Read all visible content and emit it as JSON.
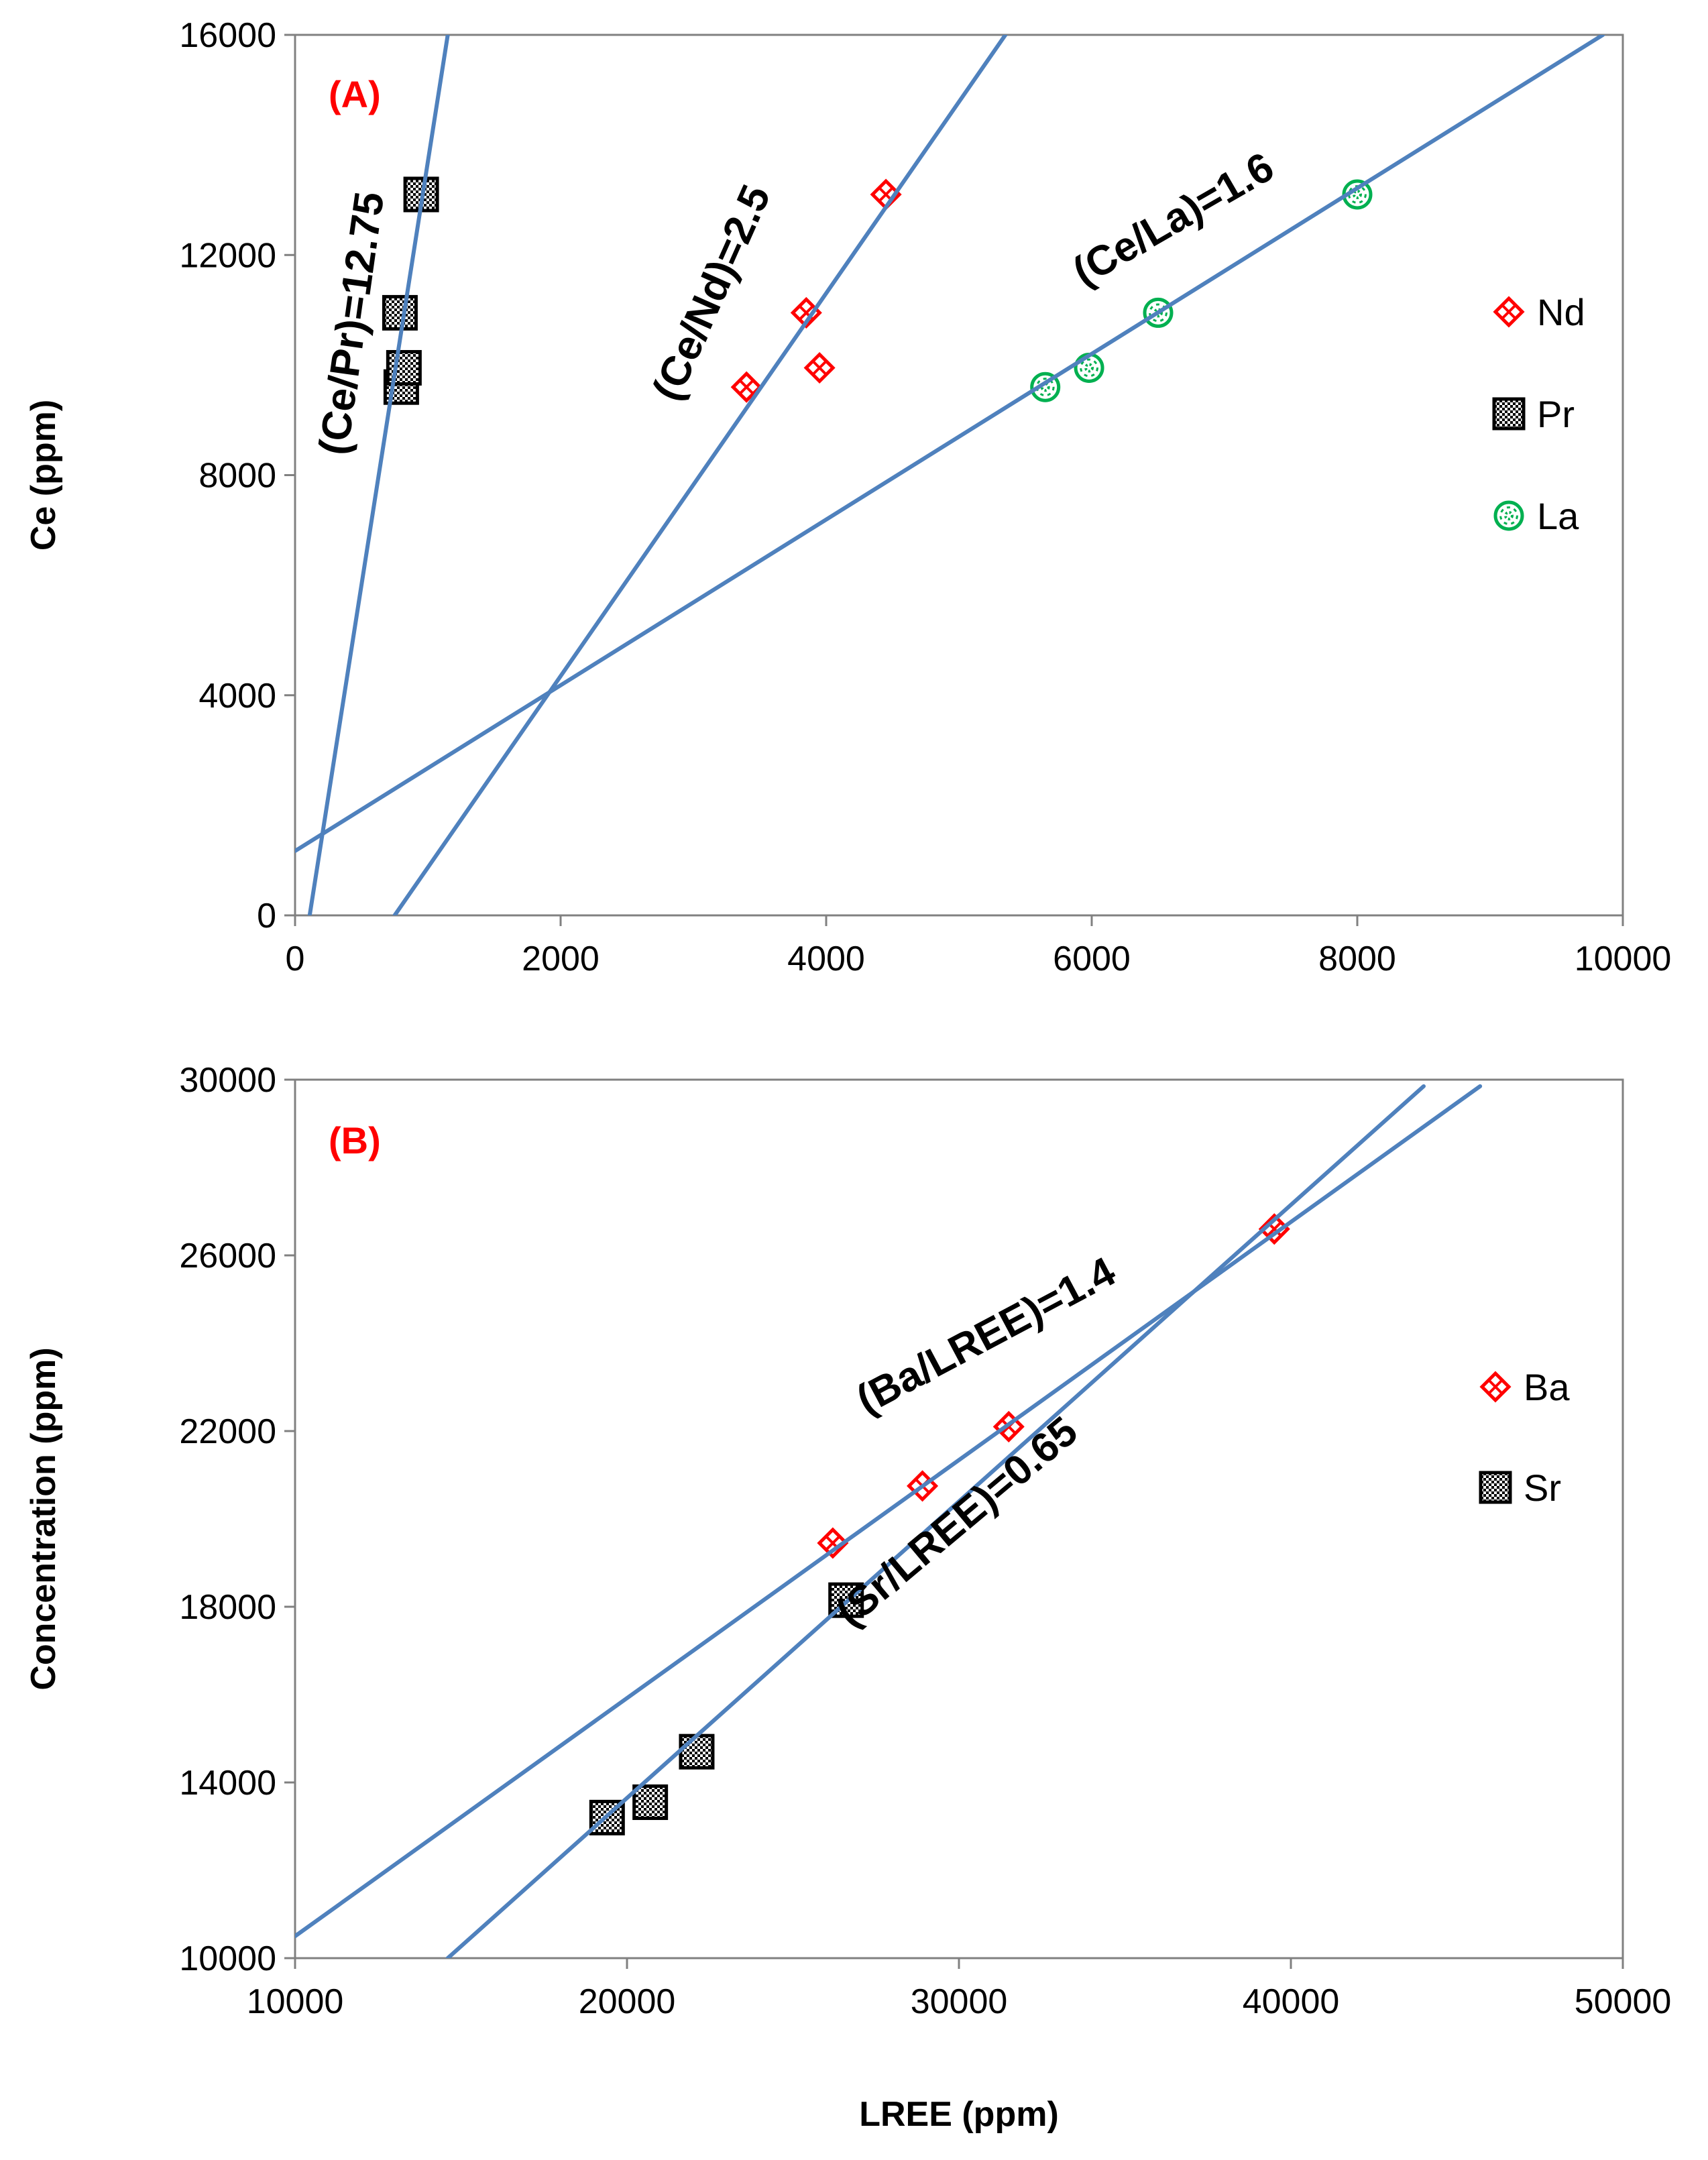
{
  "chart_data": [
    {
      "type": "scatter",
      "panel_label": "(A)",
      "title": "",
      "xlabel": "",
      "ylabel": "Ce (ppm)",
      "xlim": [
        0,
        10000
      ],
      "ylim": [
        0,
        16000
      ],
      "xticks": [
        "0",
        "2000",
        "4000",
        "6000",
        "8000",
        "10000"
      ],
      "yticks": [
        "0",
        "4000",
        "8000",
        "12000",
        "16000"
      ],
      "grid": false,
      "legend_position": "right",
      "series": [
        {
          "name": "Nd",
          "marker": "diamond",
          "color": "#ff0000",
          "points": [
            [
              3400,
              9600
            ],
            [
              3850,
              10950
            ],
            [
              3950,
              9950
            ],
            [
              4450,
              13100
            ]
          ]
        },
        {
          "name": "Pr",
          "marker": "square",
          "color": "#000000",
          "points": [
            [
              800,
              9600
            ],
            [
              820,
              9950
            ],
            [
              790,
              10950
            ],
            [
              950,
              13100
            ]
          ]
        },
        {
          "name": "La",
          "marker": "circle",
          "color": "#00b050",
          "points": [
            [
              5650,
              9600
            ],
            [
              5980,
              9950
            ],
            [
              6500,
              10950
            ],
            [
              8000,
              13100
            ]
          ]
        }
      ],
      "trend_lines": [
        {
          "label": "(Ce/Pr)=12.75",
          "points": [
            [
              110,
              0
            ],
            [
              1150,
              16000
            ]
          ]
        },
        {
          "label": "(Ce/Nd)=2.5",
          "points": [
            [
              750,
              0
            ],
            [
              5350,
              16000
            ]
          ]
        },
        {
          "label": "(Ce/La)=1.6",
          "points": [
            [
              0,
              1170
            ],
            [
              9850,
              16000
            ]
          ]
        }
      ]
    },
    {
      "type": "scatter",
      "panel_label": "(B)",
      "title": "",
      "xlabel": "LREE (ppm)",
      "ylabel": "Concentration (ppm)",
      "xlim": [
        10000,
        50000
      ],
      "ylim": [
        10000,
        30000
      ],
      "xticks": [
        "10000",
        "20000",
        "30000",
        "40000",
        "50000"
      ],
      "yticks": [
        "10000",
        "14000",
        "18000",
        "22000",
        "26000",
        "30000"
      ],
      "grid": false,
      "legend_position": "right",
      "series": [
        {
          "name": "Ba",
          "marker": "diamond",
          "color": "#ff0000",
          "points": [
            [
              26200,
              19450
            ],
            [
              28900,
              20750
            ],
            [
              31500,
              22100
            ],
            [
              39500,
              26600
            ]
          ]
        },
        {
          "name": "Sr",
          "marker": "square",
          "color": "#000000",
          "points": [
            [
              19400,
              13200
            ],
            [
              20700,
              13550
            ],
            [
              22100,
              14700
            ],
            [
              26600,
              18150
            ]
          ]
        }
      ],
      "trend_lines": [
        {
          "label": "(Ba/LREE)=1.4",
          "points": [
            [
              10000,
              10500
            ],
            [
              45700,
              29850
            ]
          ]
        },
        {
          "label": "(Sr/LREE)=0.65",
          "points": [
            [
              14600,
              10000
            ],
            [
              44000,
              29850
            ]
          ]
        }
      ]
    }
  ]
}
